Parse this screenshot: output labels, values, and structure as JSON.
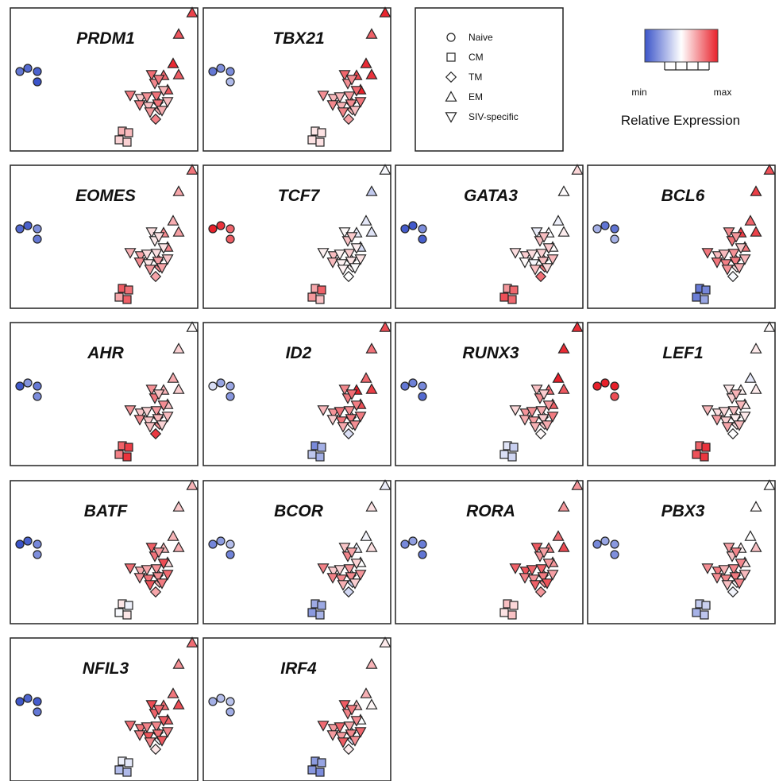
{
  "chart_data": {
    "type": "scatter",
    "panels": [
      "PRDM1",
      "TBX21",
      "EOMES",
      "TCF7",
      "GATA3",
      "BCL6",
      "AHR",
      "ID2",
      "RUNX3",
      "LEF1",
      "BATF",
      "BCOR",
      "RORA",
      "PBX3",
      "NFIL3",
      "IRF4"
    ],
    "legend": {
      "entries": [
        {
          "label": "Naive",
          "shape": "circle"
        },
        {
          "label": "CM",
          "shape": "square"
        },
        {
          "label": "TM",
          "shape": "diamond"
        },
        {
          "label": "EM",
          "shape": "triangle-up"
        },
        {
          "label": "SIV-specific",
          "shape": "triangle-down"
        }
      ]
    },
    "color_scale": {
      "min_label": "min",
      "max_label": "max",
      "title": "Relative Expression",
      "colors": [
        "#3b54c9",
        "#ffffff",
        "#e8202a"
      ]
    }
  }
}
